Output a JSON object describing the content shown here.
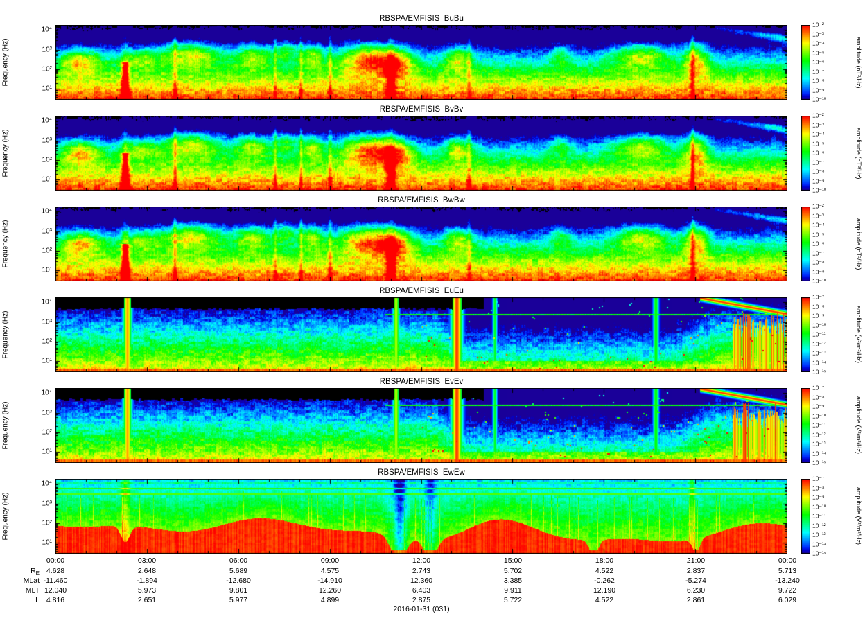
{
  "figure": {
    "ylabel": "Frequency (Hz)",
    "y_ticks": [
      "10⁴",
      "10³",
      "10²",
      "10¹"
    ],
    "time_ticks": [
      "00:00",
      "03:00",
      "06:00",
      "09:00",
      "12:00",
      "15:00",
      "18:00",
      "21:00",
      "00:00"
    ],
    "date_label": "2016-01-31 (031)"
  },
  "ephemeris": {
    "rows": [
      {
        "label": {
          "text": "R",
          "sub": "E"
        },
        "values": [
          "4.628",
          "2.648",
          "5.689",
          "4.575",
          "2.743",
          "5.702",
          "4.522",
          "2.837",
          "5.713"
        ]
      },
      {
        "label": {
          "text": "MLat",
          "sub": ""
        },
        "values": [
          "-11.460",
          "-1.894",
          "-12.680",
          "-14.910",
          "12.360",
          "3.385",
          "-0.262",
          "-5.274",
          "-13.240"
        ]
      },
      {
        "label": {
          "text": "MLT",
          "sub": ""
        },
        "values": [
          "12.040",
          "5.973",
          "9.801",
          "12.260",
          "6.403",
          "9.911",
          "12.190",
          "6.230",
          "9.722"
        ]
      },
      {
        "label": {
          "text": "L",
          "sub": ""
        },
        "values": [
          "4.816",
          "2.651",
          "5.977",
          "4.899",
          "2.875",
          "5.722",
          "4.522",
          "2.861",
          "6.029"
        ]
      }
    ]
  },
  "chart_data": [
    {
      "type": "heatmap",
      "title": "RBSPA/EMFISIS  BuBu",
      "ylabel": "Frequency (Hz)",
      "y_scale": "log",
      "y_range_hz": [
        3,
        18000
      ],
      "y_ticks_hz": [
        10,
        100,
        1000,
        10000
      ],
      "x_start": "2016-01-31 00:00",
      "x_end": "2016-02-01 00:00",
      "x_tick_interval_hours": 3,
      "colorbar": {
        "label": "amplitude (nT²/Hz)",
        "scale": "log",
        "units": "nT²/Hz",
        "max": "10⁻²",
        "min": "10⁻¹⁰",
        "colormap": "rainbow",
        "tick_labels": [
          "10⁻²",
          "10⁻³",
          "10⁻⁴",
          "10⁻⁵",
          "10⁻⁶",
          "10⁻⁷",
          "10⁻⁸",
          "10⁻⁹",
          "10⁻¹⁰"
        ]
      },
      "render": "B",
      "description": "Magnetic spectral density Bu: intense red/orange band below ~10 Hz all day; green mottled patches (hiss/chorus) 100–2000 Hz; dark blue above ~2 kHz; broadband burst near 02:15 UT; low-frequency enhancement near 11:00 UT; descending green tone 22:00–24:00 UT."
    },
    {
      "type": "heatmap",
      "title": "RBSPA/EMFISIS  BvBv",
      "ylabel": "Frequency (Hz)",
      "y_scale": "log",
      "y_range_hz": [
        3,
        18000
      ],
      "y_ticks_hz": [
        10,
        100,
        1000,
        10000
      ],
      "x_start": "2016-01-31 00:00",
      "x_end": "2016-02-01 00:00",
      "x_tick_interval_hours": 3,
      "colorbar": {
        "label": "amplitude (nT²/Hz)",
        "scale": "log",
        "units": "nT²/Hz",
        "max": "10⁻²",
        "min": "10⁻¹⁰",
        "colormap": "rainbow",
        "tick_labels": [
          "10⁻²",
          "10⁻³",
          "10⁻⁴",
          "10⁻⁵",
          "10⁻⁶",
          "10⁻⁷",
          "10⁻⁸",
          "10⁻⁹",
          "10⁻¹⁰"
        ]
      },
      "render": "B",
      "description": "Magnetic spectral density Bv: same morphology as BuBu — red low-frequency band, green mid-band patches, dark blue high frequencies, bursts near 02:15 and 11:00 UT."
    },
    {
      "type": "heatmap",
      "title": "RBSPA/EMFISIS  BwBw",
      "ylabel": "Frequency (Hz)",
      "y_scale": "log",
      "y_range_hz": [
        3,
        18000
      ],
      "y_ticks_hz": [
        10,
        100,
        1000,
        10000
      ],
      "x_start": "2016-01-31 00:00",
      "x_end": "2016-02-01 00:00",
      "x_tick_interval_hours": 3,
      "colorbar": {
        "label": "amplitude (nT²/Hz)",
        "scale": "log",
        "units": "nT²/Hz",
        "max": "10⁻²",
        "min": "10⁻¹⁰",
        "colormap": "rainbow",
        "tick_labels": [
          "10⁻²",
          "10⁻³",
          "10⁻⁴",
          "10⁻⁵",
          "10⁻⁶",
          "10⁻⁷",
          "10⁻⁸",
          "10⁻⁹",
          "10⁻¹⁰"
        ]
      },
      "render": "B",
      "description": "Magnetic spectral density Bw: same morphology as BuBu/BvBv with strong red band at lowest frequencies and green patches at 100–2000 Hz."
    },
    {
      "type": "heatmap",
      "title": "RBSPA/EMFISIS  EuEu",
      "ylabel": "Frequency (Hz)",
      "y_scale": "log",
      "y_range_hz": [
        3,
        18000
      ],
      "y_ticks_hz": [
        10,
        100,
        1000,
        10000
      ],
      "x_start": "2016-01-31 00:00",
      "x_end": "2016-02-01 00:00",
      "x_tick_interval_hours": 3,
      "colorbar": {
        "label": "amplitude (V²/m²/Hz)",
        "scale": "log",
        "units": "V²/m²/Hz",
        "max": "10⁻⁷",
        "min": "10⁻¹⁵",
        "colormap": "rainbow",
        "tick_labels": [
          "10⁻⁷",
          "10⁻⁸",
          "10⁻⁹",
          "10⁻¹⁰",
          "10⁻¹¹",
          "10⁻¹²",
          "10⁻¹³",
          "10⁻¹⁴",
          "10⁻¹⁵"
        ]
      },
      "render": "E",
      "description": "Electric spectral density Eu: black (below threshold) above ~3 kHz until ~14:00 UT; mottled green 10–1000 Hz; thin intense red line at lowest frequencies; broadband red bursts near 02:20 and 13:10 UT; darker blue interval 12:30–21:30 UT; dense red striations and descending intense tone after ~21:30 UT."
    },
    {
      "type": "heatmap",
      "title": "RBSPA/EMFISIS  EvEv",
      "ylabel": "Frequency (Hz)",
      "y_scale": "log",
      "y_range_hz": [
        3,
        18000
      ],
      "y_ticks_hz": [
        10,
        100,
        1000,
        10000
      ],
      "x_start": "2016-01-31 00:00",
      "x_end": "2016-02-01 00:00",
      "x_tick_interval_hours": 3,
      "colorbar": {
        "label": "amplitude (V²/m²/Hz)",
        "scale": "log",
        "units": "V²/m²/Hz",
        "max": "10⁻⁷",
        "min": "10⁻¹⁵",
        "colormap": "rainbow",
        "tick_labels": [
          "10⁻⁷",
          "10⁻⁸",
          "10⁻⁹",
          "10⁻¹⁰",
          "10⁻¹¹",
          "10⁻¹²",
          "10⁻¹³",
          "10⁻¹⁴",
          "10⁻¹⁵"
        ]
      },
      "render": "E",
      "description": "Electric spectral density Ev: same morphology as EuEu — black high-frequency region early, green mottled mid band, red bursts near 02:20 and 13:10 UT, red striations at end of day."
    },
    {
      "type": "heatmap",
      "title": "RBSPA/EMFISIS  EwEw",
      "ylabel": "Frequency (Hz)",
      "y_scale": "log",
      "y_range_hz": [
        3,
        18000
      ],
      "y_ticks_hz": [
        10,
        100,
        1000,
        10000
      ],
      "x_start": "2016-01-31 00:00",
      "x_end": "2016-02-01 00:00",
      "x_tick_interval_hours": 3,
      "colorbar": {
        "label": "amplitude (V²/m²/Hz)",
        "scale": "log",
        "units": "V²/m²/Hz",
        "max": "10⁻⁷",
        "min": "10⁻¹⁵",
        "colormap": "rainbow",
        "tick_labels": [
          "10⁻⁷",
          "10⁻⁸",
          "10⁻⁹",
          "10⁻¹⁰",
          "10⁻¹¹",
          "10⁻¹²",
          "10⁻¹³",
          "10⁻¹⁴",
          "10⁻¹⁵"
        ]
      },
      "render": "Ew",
      "description": "Electric spectral density Ew: saturated red below a wavy 30–300 Hz boundary all day (highest near 14:30 UT); green mid band to ~2 kHz; narrow green horizontal lines near 2–4 kHz; dropouts near 02:15, 11:15 and 12:20 UT."
    }
  ],
  "render_profiles": {
    "B": {
      "kind": "B",
      "blobs": [
        [
          0.035,
          0.02,
          0.52,
          0.12,
          0.5
        ],
        [
          0.115,
          0.02,
          0.55,
          0.1,
          0.35
        ],
        [
          0.185,
          0.03,
          0.62,
          0.13,
          0.55
        ],
        [
          0.27,
          0.018,
          0.6,
          0.12,
          0.45
        ],
        [
          0.315,
          0.012,
          0.66,
          0.1,
          0.4
        ],
        [
          0.35,
          0.012,
          0.6,
          0.12,
          0.45
        ],
        [
          0.425,
          0.028,
          0.56,
          0.16,
          0.6
        ],
        [
          0.465,
          0.018,
          0.5,
          0.14,
          0.5
        ],
        [
          0.55,
          0.014,
          0.56,
          0.12,
          0.45
        ],
        [
          0.69,
          0.01,
          0.6,
          0.1,
          0.3
        ],
        [
          0.8,
          0.028,
          0.6,
          0.12,
          0.5
        ],
        [
          0.875,
          0.012,
          0.55,
          0.18,
          0.5
        ]
      ],
      "streaks": [
        [
          0.095,
          0.0035,
          0.6,
          0.5
        ],
        [
          0.458,
          0.004,
          0.45,
          0.4
        ],
        [
          0.163,
          0.002,
          0.2,
          1
        ],
        [
          0.3,
          0.0015,
          0.18,
          1
        ],
        [
          0.335,
          0.0015,
          0.18,
          1
        ],
        [
          0.375,
          0.002,
          0.2,
          1
        ],
        [
          0.565,
          0.002,
          0.18,
          1
        ],
        [
          0.87,
          0.002,
          0.22,
          1
        ]
      ],
      "wedge": [
        0.9,
        0.97,
        -1.5,
        0.5
      ]
    },
    "E": {
      "kind": "E",
      "streaks": [
        [
          0.098,
          0.004,
          0.85
        ],
        [
          0.465,
          0.003,
          0.7
        ],
        [
          0.548,
          0.005,
          0.95
        ],
        [
          0.6,
          0.002,
          0.5
        ],
        [
          0.82,
          0.0025,
          0.55
        ]
      ]
    },
    "Ew": {
      "kind": "Ew",
      "dips": [
        [
          0.095,
          0.006,
          0.22
        ],
        [
          0.468,
          0.01,
          0.33
        ],
        [
          0.512,
          0.008,
          0.28
        ],
        [
          0.735,
          0.006,
          0.2
        ],
        [
          0.875,
          0.005,
          0.18
        ]
      ],
      "streaks": [
        [
          0.095,
          0.004,
          0.25
        ],
        [
          0.47,
          0.006,
          -0.3
        ],
        [
          0.512,
          0.005,
          -0.22
        ],
        [
          0.87,
          0.003,
          0.18
        ]
      ]
    }
  }
}
